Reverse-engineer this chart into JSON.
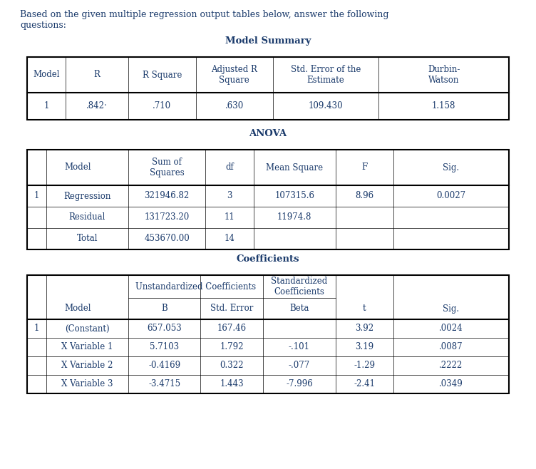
{
  "text_color": "#1a3a6b",
  "bg_color": "#ffffff",
  "intro_line1": "Based on the given multiple regression output tables below, answer the following",
  "intro_line2": "questions:",
  "ms_title": "Model Summary",
  "ms_headers": [
    "Model",
    "R",
    "R Square",
    "Adjusted R\nSquare",
    "Std. Error of the\nEstimate",
    "Durbin-\nWatson"
  ],
  "ms_data": [
    "1",
    ".842·",
    ".710",
    ".630",
    "109.430",
    "1.158"
  ],
  "ms_col_ratios": [
    0.08,
    0.13,
    0.14,
    0.16,
    0.22,
    0.27
  ],
  "an_title": "ANOVA",
  "an_headers": [
    "Model",
    "Sum of\nSquares",
    "df",
    "Mean Square",
    "F",
    "Sig."
  ],
  "an_col_ratios": [
    0.04,
    0.17,
    0.16,
    0.1,
    0.17,
    0.12,
    0.24
  ],
  "an_data": [
    [
      "1",
      "Regression",
      "321946.82",
      "3",
      "107315.6",
      "8.96",
      "0.0027"
    ],
    [
      "",
      "Residual",
      "131723.20",
      "11",
      "11974.8",
      "",
      ""
    ],
    [
      "",
      "Total",
      "453670.00",
      "14",
      "",
      "",
      ""
    ]
  ],
  "co_title": "Coefficients",
  "co_col_ratios": [
    0.04,
    0.17,
    0.15,
    0.13,
    0.15,
    0.12,
    0.24
  ],
  "co_data": [
    [
      "1",
      "(Constant)",
      "657.053",
      "167.46",
      "",
      "3.92",
      ".0024"
    ],
    [
      "",
      "X Variable 1",
      "5.7103",
      "1.792",
      "-.101",
      "3.19",
      ".0087"
    ],
    [
      "",
      "X Variable 2",
      "-0.4169",
      "0.322",
      "-.077",
      "-1.29",
      ".2222"
    ],
    [
      "",
      "X Variable 3",
      "-3.4715",
      "1.443",
      "-7.996",
      "-2.41",
      ".0349"
    ]
  ],
  "font_size": 8.5,
  "title_font_size": 9.5,
  "lw_thick": 1.5,
  "lw_thin": 0.5
}
